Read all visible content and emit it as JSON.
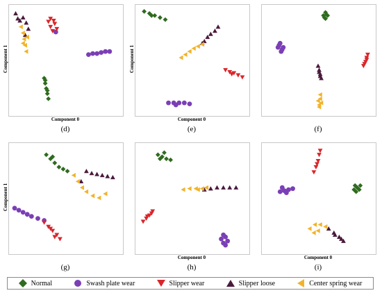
{
  "series_legend": [
    {
      "name": "Normal",
      "color": "#2f6b1f",
      "marker": "diamond"
    },
    {
      "name": "Swash plate wear",
      "color": "#7b3fb5",
      "marker": "circle"
    },
    {
      "name": "Slipper wear",
      "color": "#d9262a",
      "marker": "triangle-down"
    },
    {
      "name": "Slipper loose",
      "color": "#4a1a3c",
      "marker": "triangle-up"
    },
    {
      "name": "Center spring wear",
      "color": "#f2b32a",
      "marker": "triangle-left"
    }
  ],
  "chart_data": [
    {
      "type": "scatter",
      "panel_label": "(d)",
      "xlabel": "Component 0",
      "ylabel": "Component 1",
      "xlim": [
        0,
        100
      ],
      "ylim": [
        0,
        100
      ],
      "clusters": [
        {
          "series": "Normal",
          "points": [
            [
              30,
              32
            ],
            [
              31,
              27
            ],
            [
              32,
              22
            ],
            [
              33,
              17
            ],
            [
              34,
              12
            ],
            [
              31,
              30
            ],
            [
              33,
              20
            ]
          ]
        },
        {
          "series": "Swash plate wear",
          "points": [
            [
              72,
              55
            ],
            [
              76,
              56
            ],
            [
              80,
              56
            ],
            [
              84,
              57
            ],
            [
              88,
              58
            ],
            [
              92,
              58
            ],
            [
              41,
              77
            ]
          ]
        },
        {
          "series": "Slipper wear",
          "points": [
            [
              34,
              87
            ],
            [
              36,
              82
            ],
            [
              38,
              78
            ],
            [
              40,
              85
            ],
            [
              42,
              80
            ],
            [
              36,
              90
            ],
            [
              39,
              88
            ]
          ]
        },
        {
          "series": "Slipper loose",
          "points": [
            [
              3,
              95
            ],
            [
              5,
              90
            ],
            [
              7,
              88
            ],
            [
              10,
              91
            ],
            [
              13,
              86
            ],
            [
              15,
              80
            ],
            [
              12,
              74
            ]
          ]
        },
        {
          "series": "Center spring wear",
          "points": [
            [
              8,
              82
            ],
            [
              10,
              76
            ],
            [
              11,
              70
            ],
            [
              12,
              64
            ],
            [
              13,
              58
            ],
            [
              10,
              66
            ],
            [
              14,
              72
            ]
          ]
        }
      ]
    },
    {
      "type": "scatter",
      "panel_label": "(e)",
      "xlabel": "Component 0",
      "ylabel": "Component 1",
      "xlim": [
        0,
        100
      ],
      "ylim": [
        0,
        100
      ],
      "clusters": [
        {
          "series": "Normal",
          "points": [
            [
              5,
              97
            ],
            [
              10,
              95
            ],
            [
              15,
              93
            ],
            [
              20,
              91
            ],
            [
              25,
              89
            ],
            [
              12,
              93
            ]
          ]
        },
        {
          "series": "Swash plate wear",
          "points": [
            [
              28,
              8
            ],
            [
              33,
              8
            ],
            [
              38,
              8
            ],
            [
              43,
              8
            ],
            [
              48,
              7
            ],
            [
              35,
              6
            ]
          ]
        },
        {
          "series": "Slipper wear",
          "points": [
            [
              82,
              40
            ],
            [
              86,
              38
            ],
            [
              90,
              37
            ],
            [
              94,
              35
            ],
            [
              98,
              33
            ],
            [
              88,
              36
            ]
          ]
        },
        {
          "series": "Slipper loose",
          "points": [
            [
              62,
              68
            ],
            [
              65,
              72
            ],
            [
              68,
              75
            ],
            [
              72,
              78
            ],
            [
              75,
              82
            ],
            [
              60,
              66
            ]
          ]
        },
        {
          "series": "Center spring wear",
          "points": [
            [
              40,
              52
            ],
            [
              44,
              55
            ],
            [
              48,
              58
            ],
            [
              52,
              61
            ],
            [
              56,
              63
            ],
            [
              60,
              65
            ]
          ]
        }
      ]
    },
    {
      "type": "scatter",
      "panel_label": "(f)",
      "xlabel": "",
      "ylabel": "",
      "xlim": [
        0,
        100
      ],
      "ylim": [
        0,
        100
      ],
      "clusters": [
        {
          "series": "Normal",
          "points": [
            [
              55,
              93
            ],
            [
              57,
              90
            ],
            [
              59,
              93
            ],
            [
              57,
              96
            ],
            [
              56,
              91
            ],
            [
              58,
              94
            ]
          ]
        },
        {
          "series": "Swash plate wear",
          "points": [
            [
              12,
              62
            ],
            [
              14,
              66
            ],
            [
              15,
              58
            ],
            [
              17,
              62
            ],
            [
              13,
              64
            ],
            [
              16,
              60
            ]
          ]
        },
        {
          "series": "Slipper wear",
          "points": [
            [
              93,
              44
            ],
            [
              95,
              48
            ],
            [
              96,
              52
            ],
            [
              97,
              55
            ],
            [
              94,
              46
            ],
            [
              96,
              50
            ]
          ]
        },
        {
          "series": "Slipper loose",
          "points": [
            [
              50,
              44
            ],
            [
              51,
              40
            ],
            [
              52,
              36
            ],
            [
              53,
              32
            ],
            [
              51,
              38
            ],
            [
              52,
              34
            ]
          ]
        },
        {
          "series": "Center spring wear",
          "points": [
            [
              50,
              10
            ],
            [
              51,
              6
            ],
            [
              52,
              12
            ],
            [
              53,
              8
            ],
            [
              52,
              16
            ],
            [
              51,
              4
            ]
          ]
        }
      ]
    },
    {
      "type": "scatter",
      "panel_label": "(g)",
      "xlabel": "",
      "ylabel": "Component 1",
      "xlim": [
        0,
        100
      ],
      "ylim": [
        0,
        100
      ],
      "clusters": [
        {
          "series": "Normal",
          "points": [
            [
              32,
              92
            ],
            [
              36,
              88
            ],
            [
              40,
              84
            ],
            [
              44,
              80
            ],
            [
              48,
              78
            ],
            [
              52,
              76
            ],
            [
              38,
              90
            ]
          ]
        },
        {
          "series": "Swash plate wear",
          "points": [
            [
              2,
              40
            ],
            [
              6,
              38
            ],
            [
              10,
              36
            ],
            [
              14,
              34
            ],
            [
              18,
              32
            ],
            [
              24,
              30
            ],
            [
              30,
              28
            ]
          ]
        },
        {
          "series": "Slipper wear",
          "points": [
            [
              30,
              26
            ],
            [
              34,
              22
            ],
            [
              38,
              18
            ],
            [
              42,
              14
            ],
            [
              45,
              10
            ],
            [
              40,
              12
            ],
            [
              36,
              20
            ]
          ]
        },
        {
          "series": "Slipper loose",
          "points": [
            [
              70,
              76
            ],
            [
              75,
              74
            ],
            [
              80,
              73
            ],
            [
              85,
              72
            ],
            [
              90,
              71
            ],
            [
              95,
              70
            ],
            [
              65,
              66
            ]
          ]
        },
        {
          "series": "Center spring wear",
          "points": [
            [
              58,
              72
            ],
            [
              62,
              66
            ],
            [
              66,
              60
            ],
            [
              70,
              56
            ],
            [
              76,
              52
            ],
            [
              82,
              50
            ],
            [
              88,
              54
            ]
          ]
        }
      ]
    },
    {
      "type": "scatter",
      "panel_label": "(h)",
      "xlabel": "Component 0",
      "ylabel": "",
      "xlim": [
        0,
        100
      ],
      "ylim": [
        0,
        100
      ],
      "clusters": [
        {
          "series": "Normal",
          "points": [
            [
              18,
              92
            ],
            [
              22,
              90
            ],
            [
              26,
              88
            ],
            [
              30,
              87
            ],
            [
              24,
              94
            ],
            [
              20,
              88
            ]
          ]
        },
        {
          "series": "Swash plate wear",
          "points": [
            [
              78,
              10
            ],
            [
              80,
              6
            ],
            [
              82,
              12
            ],
            [
              84,
              8
            ],
            [
              82,
              4
            ],
            [
              80,
              14
            ]
          ]
        },
        {
          "series": "Slipper wear",
          "points": [
            [
              4,
              27
            ],
            [
              7,
              30
            ],
            [
              10,
              33
            ],
            [
              13,
              37
            ],
            [
              8,
              32
            ],
            [
              12,
              35
            ]
          ]
        },
        {
          "series": "Slipper loose",
          "points": [
            [
              62,
              58
            ],
            [
              68,
              59
            ],
            [
              74,
              60
            ],
            [
              80,
              60
            ],
            [
              86,
              60
            ],
            [
              92,
              60
            ]
          ]
        },
        {
          "series": "Center spring wear",
          "points": [
            [
              42,
              58
            ],
            [
              48,
              59
            ],
            [
              54,
              59
            ],
            [
              60,
              59
            ],
            [
              64,
              60
            ],
            [
              56,
              58
            ]
          ]
        }
      ]
    },
    {
      "type": "scatter",
      "panel_label": "(i)",
      "xlabel": "Component 0",
      "ylabel": "",
      "xlim": [
        0,
        100
      ],
      "ylim": [
        0,
        100
      ],
      "clusters": [
        {
          "series": "Normal",
          "points": [
            [
              84,
              58
            ],
            [
              87,
              60
            ],
            [
              90,
              62
            ],
            [
              86,
              56
            ],
            [
              89,
              58
            ],
            [
              85,
              62
            ]
          ]
        },
        {
          "series": "Swash plate wear",
          "points": [
            [
              14,
              56
            ],
            [
              18,
              57
            ],
            [
              22,
              58
            ],
            [
              26,
              59
            ],
            [
              20,
              55
            ],
            [
              16,
              60
            ]
          ]
        },
        {
          "series": "Slipper wear",
          "points": [
            [
              46,
              75
            ],
            [
              48,
              80
            ],
            [
              50,
              86
            ],
            [
              51,
              92
            ],
            [
              52,
              96
            ],
            [
              49,
              83
            ]
          ]
        },
        {
          "series": "Slipper loose",
          "points": [
            [
              60,
              20
            ],
            [
              65,
              16
            ],
            [
              70,
              12
            ],
            [
              74,
              8
            ],
            [
              66,
              14
            ],
            [
              72,
              10
            ]
          ]
        },
        {
          "series": "Center spring wear",
          "points": [
            [
              42,
              20
            ],
            [
              47,
              24
            ],
            [
              52,
              24
            ],
            [
              57,
              22
            ],
            [
              46,
              16
            ],
            [
              50,
              18
            ]
          ]
        }
      ]
    }
  ]
}
